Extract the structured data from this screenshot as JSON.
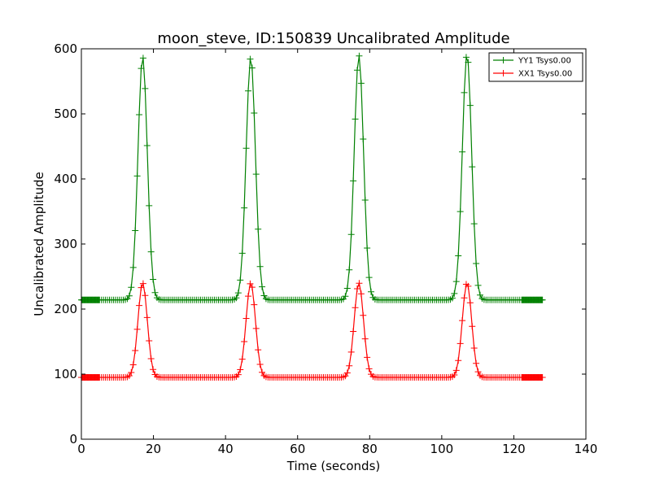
{
  "chart_data": {
    "type": "line",
    "title": "moon_steve, ID:150839 Uncalibrated Amplitude",
    "xlabel": "Time (seconds)",
    "ylabel": "Uncalibrated Amplitude",
    "xlim": [
      0,
      140
    ],
    "ylim": [
      0,
      600
    ],
    "xticks": [
      0,
      20,
      40,
      60,
      80,
      100,
      120,
      140
    ],
    "yticks": [
      0,
      100,
      200,
      300,
      400,
      500,
      600
    ],
    "grid": false,
    "legend_position": "top-right",
    "marker": "+",
    "series": [
      {
        "name": "YY1 Tsys0.00",
        "color": "#008000",
        "baseline": 214,
        "peaks": [
          {
            "center": 17,
            "height": 588
          },
          {
            "center": 47,
            "height": 587
          },
          {
            "center": 77,
            "height": 590
          },
          {
            "center": 107,
            "height": 592
          }
        ],
        "peak_width_sigma": 1.3,
        "x_start": 0,
        "x_end": 128
      },
      {
        "name": "XX1 Tsys0.00",
        "color": "#ff0000",
        "baseline": 95,
        "peaks": [
          {
            "center": 17,
            "height": 240
          },
          {
            "center": 47,
            "height": 240
          },
          {
            "center": 77,
            "height": 240
          },
          {
            "center": 107,
            "height": 240
          }
        ],
        "peak_width_sigma": 1.3,
        "x_start": 0,
        "x_end": 128
      }
    ]
  }
}
